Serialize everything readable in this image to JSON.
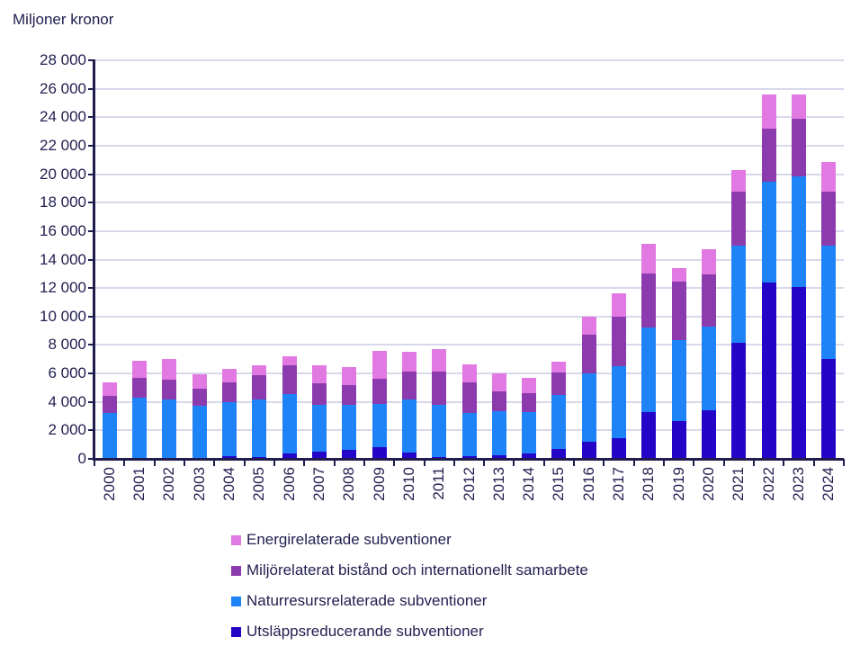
{
  "title": "Miljoner kronor",
  "chart_data": {
    "type": "bar",
    "stacked": true,
    "title": "Miljoner kronor",
    "xlabel": "",
    "ylabel": "Miljoner kronor",
    "ylim": [
      0,
      28000
    ],
    "ytick_step": 2000,
    "y_tick_labels": [
      "0",
      "2 000",
      "4 000",
      "6 000",
      "8 000",
      "10 000",
      "12 000",
      "14 000",
      "16 000",
      "18 000",
      "20 000",
      "22 000",
      "24 000",
      "26 000",
      "28 000"
    ],
    "grid": "horizontal",
    "legend_position": "bottom-left",
    "categories": [
      "2000",
      "2001",
      "2002",
      "2003",
      "2004",
      "2005",
      "2006",
      "2007",
      "2008",
      "2009",
      "2010",
      "2011",
      "2012",
      "2013",
      "2014",
      "2015",
      "2016",
      "2017",
      "2018",
      "2019",
      "2020",
      "2021",
      "2022",
      "2023",
      "2024"
    ],
    "series": [
      {
        "name": "Utsläppsreducerande subventioner",
        "color": "#2404c7",
        "values": [
          0,
          0,
          0,
          0,
          200,
          100,
          400,
          500,
          650,
          800,
          450,
          100,
          200,
          250,
          400,
          700,
          1200,
          1450,
          3300,
          2650,
          3400,
          8150,
          12400,
          12050,
          7000
        ]
      },
      {
        "name": "Naturresursrelaterade subventioner",
        "color": "#1f83f8",
        "values": [
          3250,
          4300,
          4200,
          3700,
          3800,
          4100,
          4150,
          3300,
          3150,
          3050,
          3700,
          3700,
          3050,
          3100,
          2900,
          3800,
          4800,
          5050,
          5950,
          5700,
          5900,
          6800,
          7050,
          7800,
          7950
        ]
      },
      {
        "name": "Miljörelaterat bistånd och internationellt samarbete",
        "color": "#8c3bae",
        "values": [
          1150,
          1400,
          1350,
          1200,
          1400,
          1700,
          2000,
          1500,
          1400,
          1750,
          1950,
          2300,
          2100,
          1400,
          1300,
          1550,
          2750,
          3500,
          3750,
          4100,
          3650,
          3800,
          3750,
          4050,
          3800
        ]
      },
      {
        "name": "Energirelaterade subventioner",
        "color": "#e278e2",
        "values": [
          1000,
          1200,
          1450,
          1050,
          900,
          700,
          650,
          1300,
          1250,
          2000,
          1450,
          1600,
          1300,
          1250,
          1100,
          750,
          1250,
          1600,
          2100,
          950,
          1800,
          1550,
          2400,
          1700,
          2100
        ]
      }
    ],
    "colors": {
      "axis": "#201d4e",
      "text": "#232051",
      "gridline": "#d8d8ec"
    }
  }
}
